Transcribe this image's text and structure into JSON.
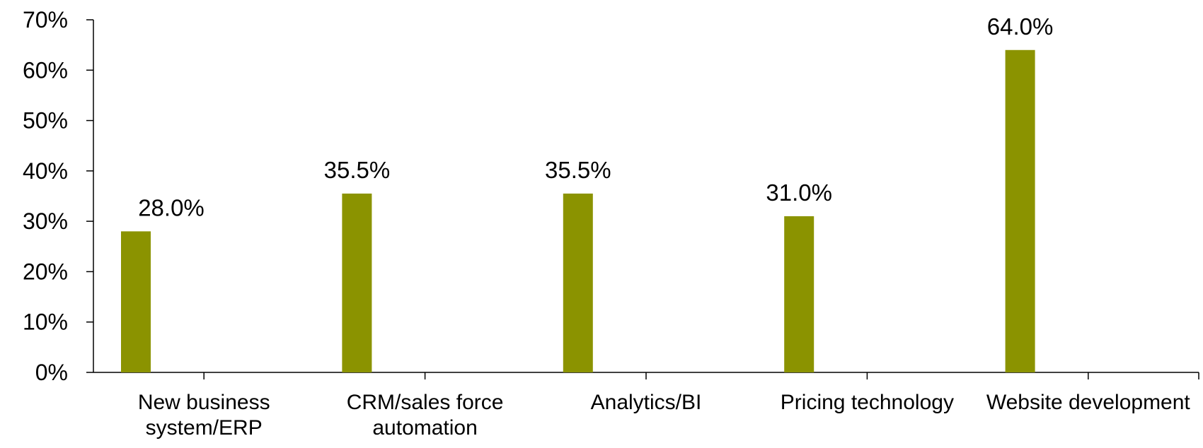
{
  "chart_data": {
    "type": "bar",
    "categories": [
      "New business system/ERP",
      "CRM/sales force automation",
      "Analytics/BI",
      "Pricing technology",
      "Website development"
    ],
    "values": [
      28,
      35.5,
      35.5,
      31,
      64
    ],
    "value_labels": [
      "28.0%",
      "35.5%",
      "35.5%",
      "31.0%",
      "64.0%"
    ],
    "color": "#8b9300",
    "ylim": [
      0,
      70
    ],
    "yticks": [
      {
        "value": 0,
        "label": "0%"
      },
      {
        "value": 10,
        "label": "10%"
      },
      {
        "value": 20,
        "label": "20%"
      },
      {
        "value": 30,
        "label": "30%"
      },
      {
        "value": 40,
        "label": "40%"
      },
      {
        "value": 50,
        "label": "50%"
      },
      {
        "value": 60,
        "label": "60%"
      },
      {
        "value": 70,
        "label": "70%"
      }
    ],
    "grid": false
  }
}
